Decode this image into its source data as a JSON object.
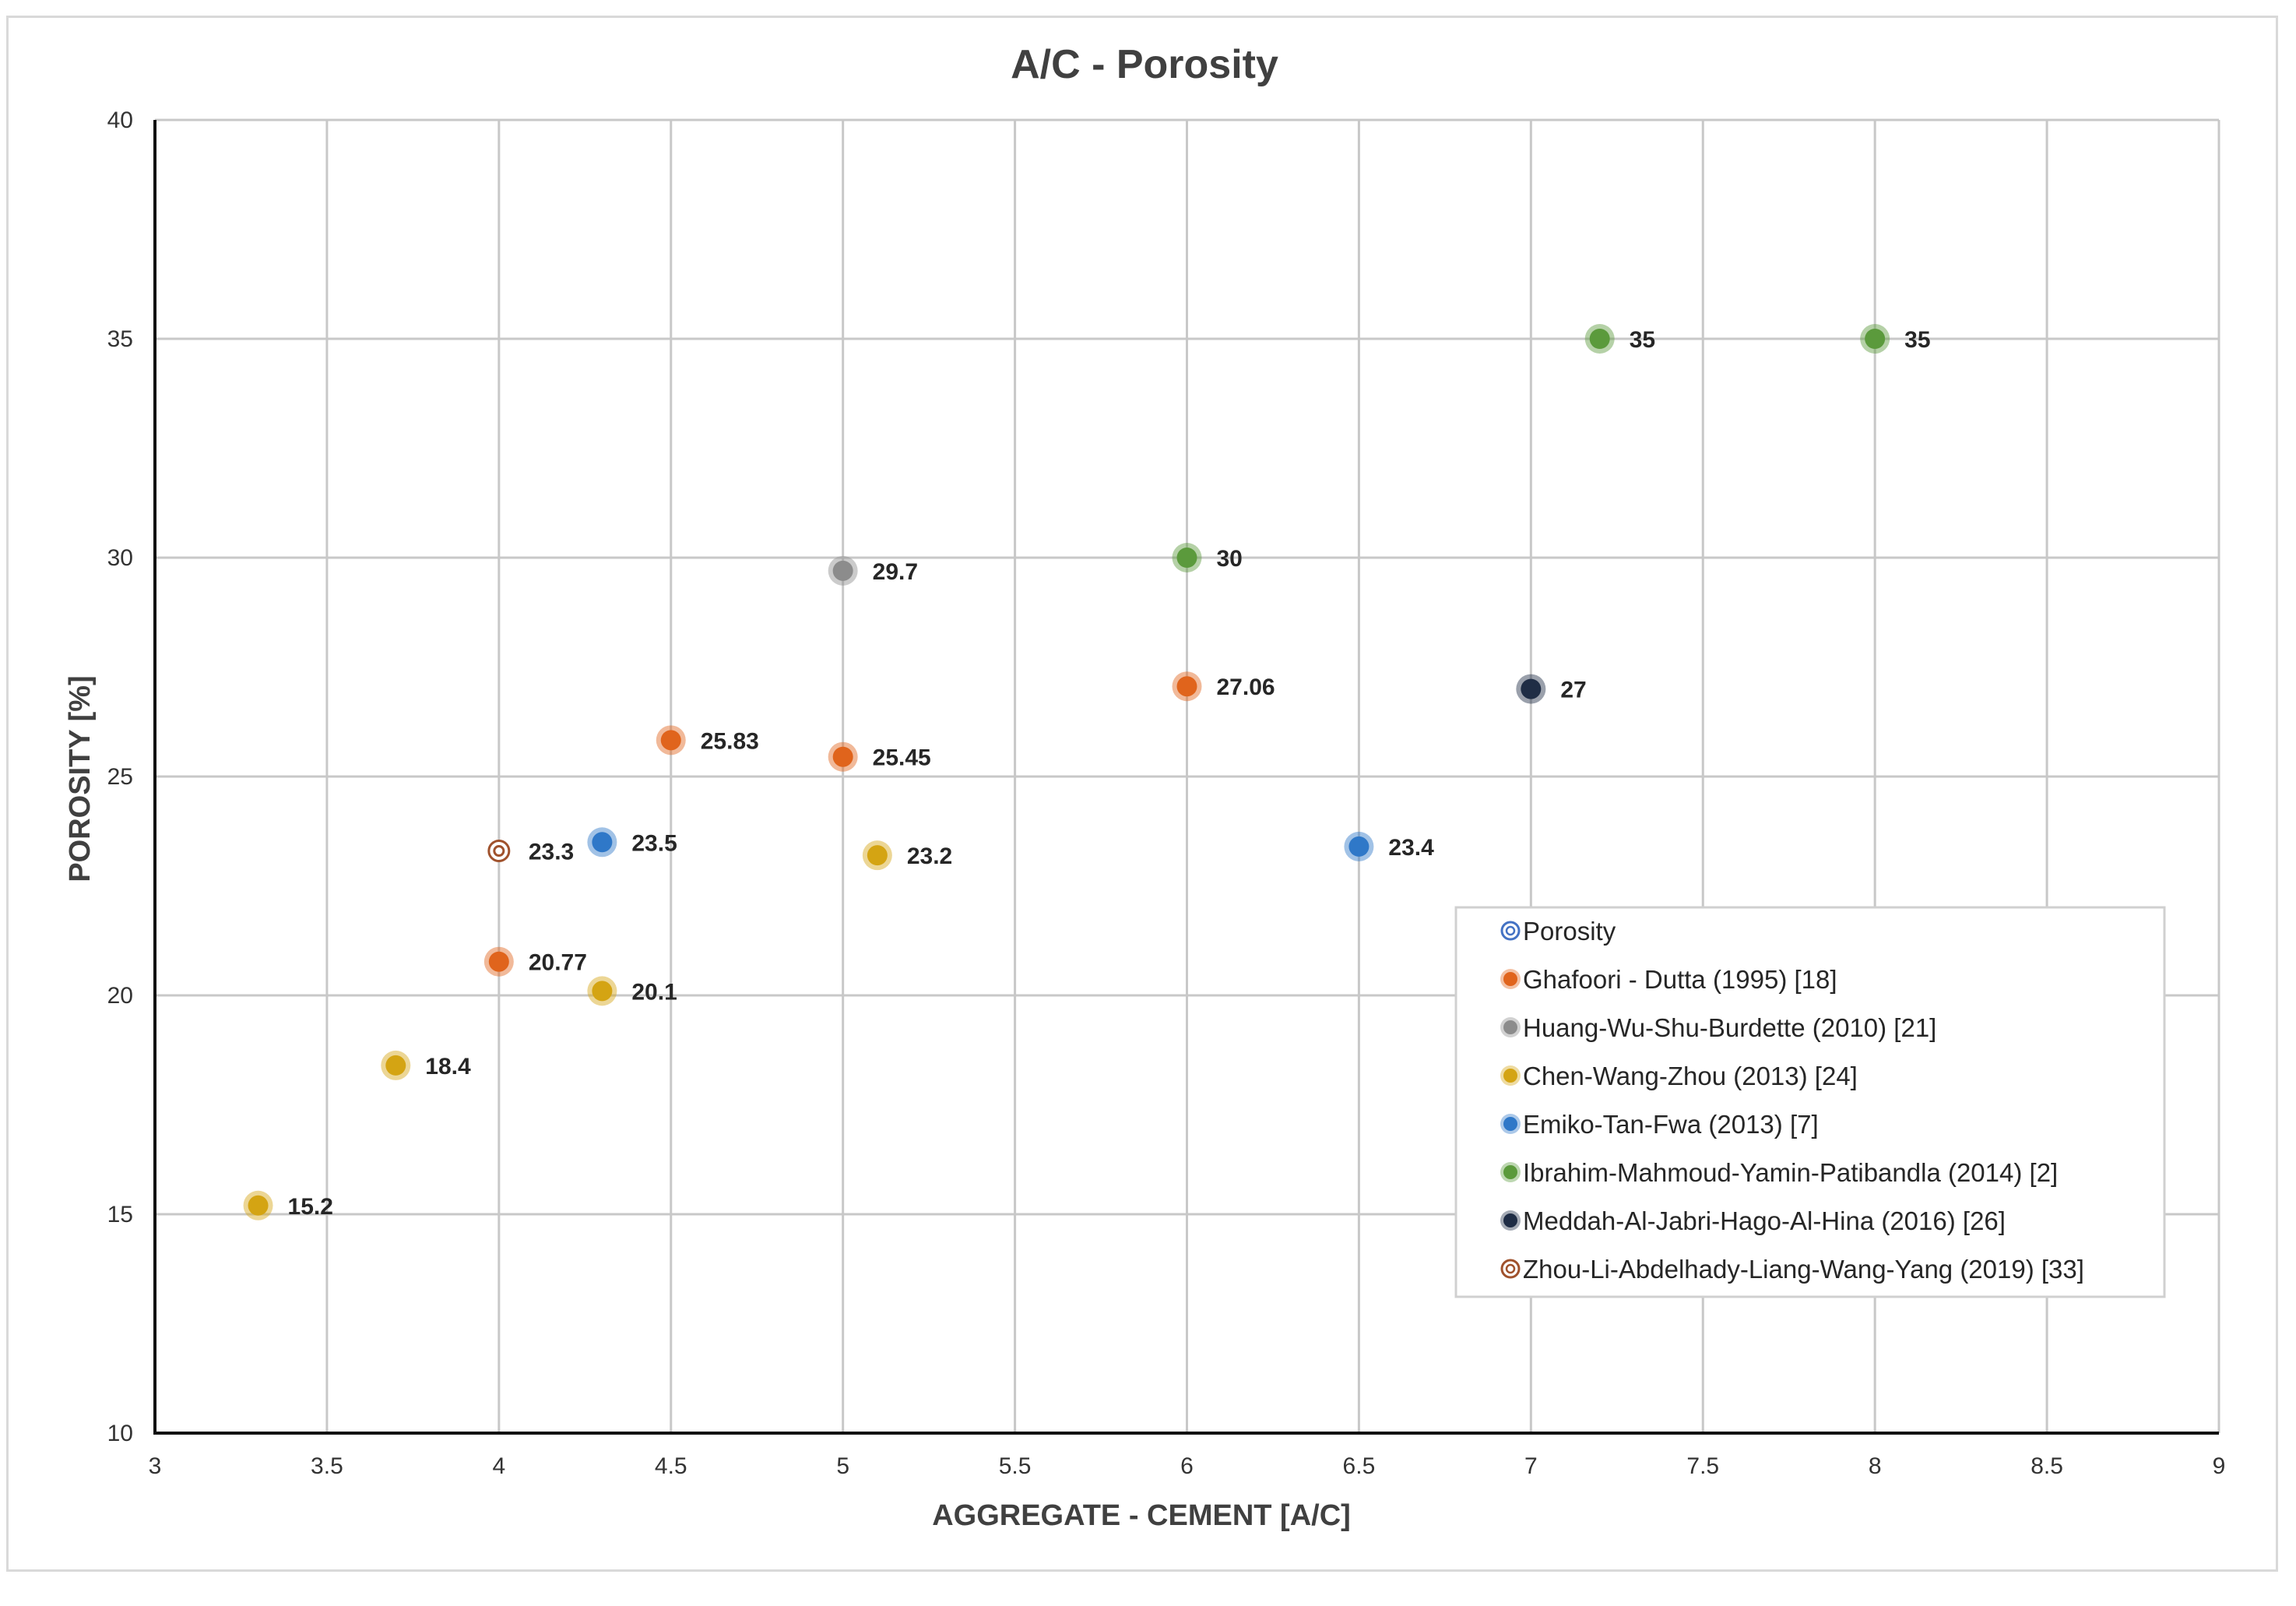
{
  "chart_data": {
    "type": "scatter",
    "title": "A/C - Porosity",
    "xlabel": "AGGREGATE - CEMENT [A/C]",
    "ylabel": "POROSITY [%]",
    "xlim": [
      3,
      9
    ],
    "ylim": [
      10,
      40
    ],
    "x_ticks": [
      "3",
      "3.5",
      "4",
      "4.5",
      "5",
      "5.5",
      "6",
      "6.5",
      "7",
      "7.5",
      "8",
      "8.5",
      "9"
    ],
    "y_ticks": [
      "10",
      "15",
      "20",
      "25",
      "30",
      "35",
      "40"
    ],
    "grid": true,
    "legend_position": "bottom-right",
    "series": [
      {
        "name": "Porosity",
        "color": "#4472c4",
        "marker": "ring",
        "points": []
      },
      {
        "name": "Ghafoori - Dutta (1995) [18]",
        "color": "#e0641c",
        "marker": "dot",
        "points": [
          {
            "x": 4.5,
            "y": 25.83,
            "label": "25.83"
          },
          {
            "x": 5,
            "y": 25.45,
            "label": "25.45"
          },
          {
            "x": 6,
            "y": 27.06,
            "label": "27.06"
          },
          {
            "x": 4,
            "y": 20.77,
            "label": "20.77"
          }
        ]
      },
      {
        "name": "Huang-Wu-Shu-Burdette (2010) [21]",
        "color": "#8c8c8c",
        "marker": "dot",
        "points": [
          {
            "x": 5,
            "y": 29.7,
            "label": "29.7"
          }
        ]
      },
      {
        "name": "Chen-Wang-Zhou (2013) [24]",
        "color": "#d4a413",
        "marker": "dot",
        "points": [
          {
            "x": 5.1,
            "y": 23.2,
            "label": "23.2"
          },
          {
            "x": 4.3,
            "y": 20.1,
            "label": "20.1"
          },
          {
            "x": 3.7,
            "y": 18.4,
            "label": "18.4"
          },
          {
            "x": 3.3,
            "y": 15.2,
            "label": "15.2"
          }
        ]
      },
      {
        "name": "Emiko-Tan-Fwa (2013) [7]",
        "color": "#2f78c8",
        "marker": "dot",
        "points": [
          {
            "x": 4.3,
            "y": 23.5,
            "label": "23.5"
          },
          {
            "x": 6.5,
            "y": 23.4,
            "label": "23.4"
          }
        ]
      },
      {
        "name": "Ibrahim-Mahmoud-Yamin-Patibandla (2014) [2]",
        "color": "#5b9a3c",
        "marker": "dot",
        "points": [
          {
            "x": 7.2,
            "y": 35,
            "label": "35"
          },
          {
            "x": 8,
            "y": 35,
            "label": "35"
          },
          {
            "x": 6,
            "y": 30,
            "label": "30"
          }
        ]
      },
      {
        "name": "Meddah-Al-Jabri-Hago-Al-Hina (2016) [26]",
        "color": "#1f2d45",
        "marker": "dot",
        "points": [
          {
            "x": 7,
            "y": 27,
            "label": "27"
          }
        ]
      },
      {
        "name": "Zhou-Li-Abdelhady-Liang-Wang-Yang (2019) [33]",
        "color": "#a0522d",
        "marker": "ring",
        "points": [
          {
            "x": 4,
            "y": 23.3,
            "label": "23.3"
          }
        ]
      }
    ]
  }
}
